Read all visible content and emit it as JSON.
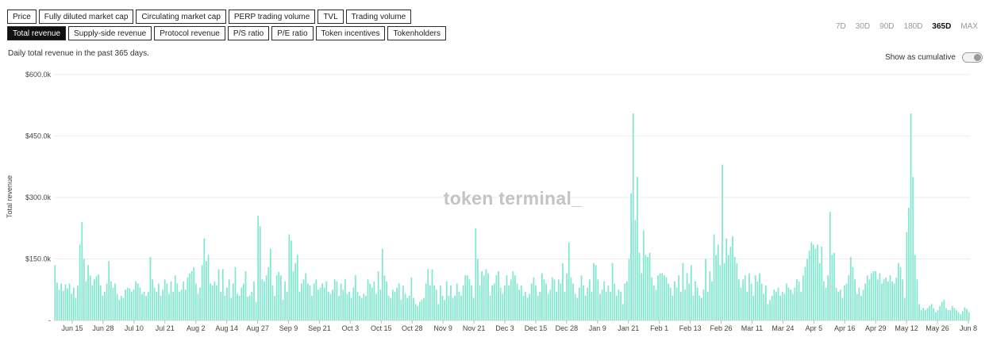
{
  "metric_tabs": {
    "row1": [
      "Price",
      "Fully diluted market cap",
      "Circulating market cap",
      "PERP trading volume",
      "TVL",
      "Trading volume"
    ],
    "row2": [
      "Total revenue",
      "Supply-side revenue",
      "Protocol revenue",
      "P/S ratio",
      "P/E ratio",
      "Token incentives",
      "Tokenholders"
    ],
    "active": "Total revenue"
  },
  "subtitle": "Daily total revenue in the past 365 days.",
  "time_ranges": [
    "7D",
    "30D",
    "90D",
    "180D",
    "365D",
    "MAX"
  ],
  "active_range": "365D",
  "cumulative_label": "Show as cumulative",
  "cumulative_on": false,
  "watermark": "token terminal_",
  "colors": {
    "bar": "#7fe8cf",
    "accent": "#111111"
  },
  "chart_data": {
    "type": "bar",
    "ylabel": "Total revenue",
    "ytick_labels": [
      "$600.0k",
      "$450.0k",
      "$300.0k",
      "$150.0k",
      "-"
    ],
    "ylim": [
      0,
      600000
    ],
    "x_tick_labels": [
      "Jun 15",
      "Jun 28",
      "Jul 10",
      "Jul 21",
      "Aug 2",
      "Aug 14",
      "Aug 27",
      "Sep 9",
      "Sep 21",
      "Oct 3",
      "Oct 15",
      "Oct 28",
      "Nov 9",
      "Nov 21",
      "Dec 3",
      "Dec 15",
      "Dec 28",
      "Jan 9",
      "Jan 21",
      "Feb 1",
      "Feb 13",
      "Feb 26",
      "Mar 11",
      "Mar 24",
      "Apr 5",
      "Apr 16",
      "Apr 29",
      "May 12",
      "May 26",
      "Jun 8"
    ],
    "grid": true,
    "series": [
      {
        "values": [
          135000,
          92000,
          75000,
          90000,
          72000,
          88000,
          78000,
          90000,
          65000,
          80000,
          55000,
          85000,
          185000,
          240000,
          150000,
          95000,
          135000,
          110000,
          85000,
          100000,
          108000,
          112000,
          85000,
          60000,
          70000,
          90000,
          145000,
          95000,
          80000,
          90000,
          65000,
          50000,
          60000,
          55000,
          75000,
          80000,
          78000,
          70000,
          75000,
          95000,
          90000,
          80000,
          65000,
          70000,
          60000,
          70000,
          155000,
          100000,
          80000,
          70000,
          90000,
          60000,
          75000,
          100000,
          90000,
          65000,
          95000,
          70000,
          110000,
          90000,
          70000,
          75000,
          95000,
          75000,
          105000,
          115000,
          120000,
          130000,
          90000,
          65000,
          80000,
          135000,
          200000,
          145000,
          160000,
          90000,
          85000,
          95000,
          85000,
          125000,
          70000,
          125000,
          60000,
          80000,
          100000,
          55000,
          90000,
          130000,
          65000,
          60000,
          80000,
          90000,
          120000,
          58000,
          60000,
          70000,
          95000,
          45000,
          255000,
          230000,
          100000,
          95000,
          110000,
          130000,
          175000,
          85000,
          60000,
          110000,
          118000,
          110000,
          50000,
          95000,
          70000,
          210000,
          195000,
          120000,
          140000,
          160000,
          70000,
          90000,
          100000,
          115000,
          90000,
          85000,
          60000,
          90000,
          100000,
          75000,
          80000,
          90000,
          80000,
          95000,
          70000,
          65000,
          75000,
          100000,
          95000,
          60000,
          90000,
          75000,
          100000,
          65000,
          70000,
          55000,
          80000,
          110000,
          70000,
          60000,
          55000,
          65000,
          60000,
          100000,
          90000,
          80000,
          95000,
          65000,
          120000,
          75000,
          175000,
          110000,
          95000,
          60000,
          55000,
          75000,
          70000,
          80000,
          90000,
          50000,
          85000,
          65000,
          55000,
          60000,
          105000,
          55000,
          40000,
          35000,
          45000,
          50000,
          55000,
          90000,
          125000,
          85000,
          125000,
          85000,
          75000,
          40000,
          85000,
          60000,
          50000,
          95000,
          60000,
          85000,
          55000,
          60000,
          90000,
          70000,
          60000,
          85000,
          110000,
          110000,
          100000,
          85000,
          55000,
          225000,
          150000,
          85000,
          120000,
          110000,
          125000,
          115000,
          60000,
          85000,
          90000,
          110000,
          120000,
          80000,
          65000,
          85000,
          110000,
          85000,
          100000,
          120000,
          110000,
          90000,
          75000,
          85000,
          60000,
          70000,
          55000,
          65000,
          90000,
          105000,
          85000,
          60000,
          70000,
          115000,
          100000,
          90000,
          65000,
          75000,
          105000,
          100000,
          70000,
          100000,
          90000,
          140000,
          70000,
          115000,
          190000,
          105000,
          90000,
          65000,
          55000,
          80000,
          110000,
          85000,
          60000,
          80000,
          100000,
          70000,
          140000,
          135000,
          100000,
          65000,
          75000,
          95000,
          70000,
          85000,
          70000,
          140000,
          90000,
          60000,
          75000,
          70000,
          40000,
          90000,
          95000,
          150000,
          310000,
          505000,
          245000,
          350000,
          165000,
          115000,
          220000,
          160000,
          155000,
          165000,
          105000,
          85000,
          75000,
          110000,
          115000,
          115000,
          110000,
          105000,
          90000,
          80000,
          60000,
          95000,
          80000,
          110000,
          70000,
          140000,
          75000,
          115000,
          90000,
          135000,
          60000,
          95000,
          80000,
          60000,
          55000,
          75000,
          150000,
          70000,
          120000,
          95000,
          210000,
          160000,
          185000,
          135000,
          380000,
          140000,
          200000,
          160000,
          180000,
          205000,
          155000,
          140000,
          100000,
          80000,
          100000,
          110000,
          70000,
          115000,
          90000,
          60000,
          110000,
          95000,
          115000,
          90000,
          65000,
          85000,
          40000,
          50000,
          60000,
          75000,
          70000,
          80000,
          60000,
          70000,
          65000,
          90000,
          80000,
          75000,
          65000,
          80000,
          100000,
          95000,
          70000,
          110000,
          130000,
          150000,
          170000,
          190000,
          185000,
          175000,
          185000,
          140000,
          180000,
          95000,
          80000,
          110000,
          265000,
          160000,
          165000,
          80000,
          70000,
          75000,
          55000,
          85000,
          90000,
          110000,
          155000,
          130000,
          100000,
          65000,
          80000,
          60000,
          75000,
          90000,
          110000,
          100000,
          115000,
          120000,
          120000,
          100000,
          115000,
          90000,
          100000,
          105000,
          95000,
          110000,
          95000,
          90000,
          105000,
          140000,
          130000,
          100000,
          55000,
          215000,
          275000,
          505000,
          350000,
          160000,
          100000,
          40000,
          25000,
          30000,
          25000,
          30000,
          35000,
          40000,
          30000,
          20000,
          25000,
          35000,
          45000,
          50000,
          30000,
          25000,
          25000,
          35000,
          30000,
          25000,
          20000,
          15000,
          22000,
          32000,
          28000,
          20000
        ]
      }
    ]
  }
}
